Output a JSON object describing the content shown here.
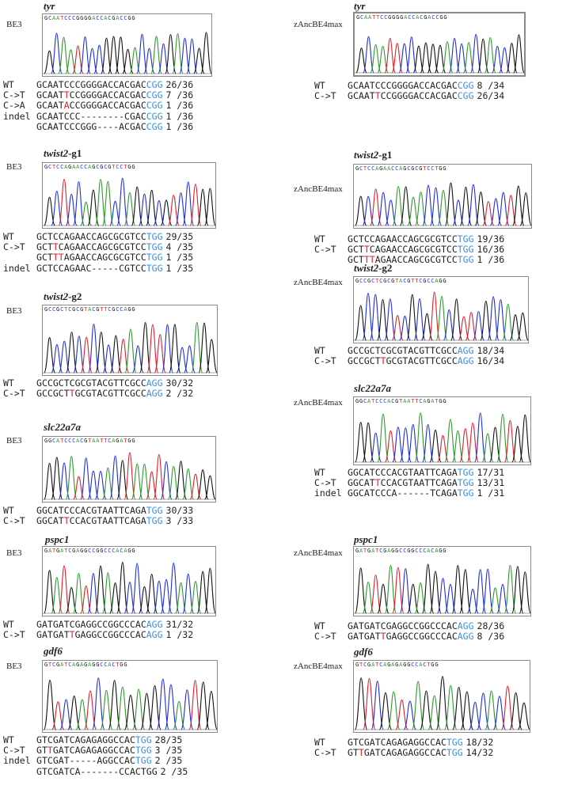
{
  "colors": {
    "A": "#2d9a2d",
    "C": "#1f2fd9",
    "G": "#111111",
    "T": "#e0202a",
    "pam": "#3c8fe0",
    "edit": "#e0202a"
  },
  "panels": [
    {
      "gene": "tyr",
      "suffix": "",
      "tool": "BE3",
      "trace": "GCAATCCCGGGGACCACGACCGG",
      "rows": [
        {
          "label": "WT",
          "seq": "GCAATCCCGGGGACCACGAC",
          "pam": "CGG",
          "count": "26/36"
        },
        {
          "label": "C->T",
          "seq": "GCAATTCCGGGGACCACGAC",
          "pam": "CGG",
          "count": "7 /36",
          "edit": [
            5
          ]
        },
        {
          "label": "C->A",
          "seq": "GCAATACCGGGGACCACGAC",
          "pam": "CGG",
          "count": "1 /36",
          "edit": [
            5
          ]
        },
        {
          "label": "indel",
          "seq": "GCAATCCC--------CGAC",
          "pam": "CGG",
          "count": "1 /36"
        },
        {
          "label": "",
          "seq": "GCAATCCCGGG----ACGAC",
          "pam": "CGG",
          "count": "1 /36"
        }
      ]
    },
    {
      "gene": "tyr",
      "suffix": "",
      "tool": "zAncBE4max",
      "trace": "GCAATTCCGGGGACCACGACCGG",
      "rows": [
        {
          "label": "WT",
          "seq": "GCAATCCCGGGGACCACGAC",
          "pam": "CGG",
          "count": "8 /34"
        },
        {
          "label": "C->T",
          "seq": "GCAATTCCGGGGACCACGAC",
          "pam": "CGG",
          "count": "26/34",
          "edit": [
            5
          ]
        }
      ]
    },
    {
      "gene": "twist2",
      "suffix": "-g1",
      "tool": "BE3",
      "trace": "GCTCCAGAACCAGCGCGTCCTGG",
      "rows": [
        {
          "label": "WT",
          "seq": "GCTCCAGAACCAGCGCGTCC",
          "pam": "TGG",
          "count": "29/35"
        },
        {
          "label": "C->T",
          "seq": "GCTTCAGAACCAGCGCGTCC",
          "pam": "TGG",
          "count": "4 /35",
          "edit": [
            3
          ]
        },
        {
          "label": "",
          "seq": "GCTTTAGAACCAGCGCGTCC",
          "pam": "TGG",
          "count": "1 /35",
          "edit": [
            3,
            4
          ]
        },
        {
          "label": "indel",
          "seq": "GCTCCAGAAC-----CGTCC",
          "pam": "TGG",
          "count": "1 /35"
        }
      ]
    },
    {
      "gene": "twist2",
      "suffix": "-g1",
      "tool": "zAncBE4max",
      "trace": "GCTCCAGAACCAGCGCGTCCTGG",
      "rows": [
        {
          "label": "WT",
          "seq": "GCTCCAGAACCAGCGCGTCC",
          "pam": "TGG",
          "count": "19/36"
        },
        {
          "label": "C->T",
          "seq": "GCTTCAGAACCAGCGCGTCC",
          "pam": "TGG",
          "count": "16/36",
          "edit": [
            3
          ]
        },
        {
          "label": "",
          "seq": "GCTTTAGAACCAGCGCGTCC",
          "pam": "TGG",
          "count": "1 /36",
          "edit": [
            3,
            4
          ]
        }
      ]
    },
    {
      "gene": "twist2",
      "suffix": "-g2",
      "tool": "BE3",
      "trace": "GCCGCTCGCGTACGTTCGCCAGG",
      "rows": [
        {
          "label": "WT",
          "seq": "GCCGCTCGCGTACGTTCGCC",
          "pam": "AGG",
          "count": "30/32"
        },
        {
          "label": "C->T",
          "seq": "GCCGCTTGCGTACGTTCGCC",
          "pam": "AGG",
          "count": "2 /32",
          "edit": [
            6
          ]
        }
      ]
    },
    {
      "gene": "twist2",
      "suffix": "-g2",
      "tool": "zAncBE4max",
      "trace": "GCCGCTCGCGTACGTTCGCCAGG",
      "rows": [
        {
          "label": "WT",
          "seq": "GCCGCTCGCGTACGTTCGCC",
          "pam": "AGG",
          "count": "18/34"
        },
        {
          "label": "C->T",
          "seq": "GCCGCTTGCGTACGTTCGCC",
          "pam": "AGG",
          "count": "16/34",
          "edit": [
            6
          ]
        }
      ]
    },
    {
      "gene": "slc22a7a",
      "suffix": "",
      "tool": "BE3",
      "trace": "GGCATCCCACGTAATTCAGATGG",
      "rows": [
        {
          "label": "WT",
          "seq": "GGCATCCCACGTAATTCAGA",
          "pam": "TGG",
          "count": "30/33"
        },
        {
          "label": "C->T",
          "seq": "GGCATTCCACGTAATTCAGA",
          "pam": "TGG",
          "count": "3 /33",
          "edit": [
            5
          ]
        }
      ]
    },
    {
      "gene": "slc22a7a",
      "suffix": "",
      "tool": "zAncBE4max",
      "trace": "GGCATCCCACGTAATTCAGATGG",
      "rows": [
        {
          "label": "WT",
          "seq": "GGCATCCCACGTAATTCAGA",
          "pam": "TGG",
          "count": "17/31"
        },
        {
          "label": "C->T",
          "seq": "GGCATTCCACGTAATTCAGA",
          "pam": "TGG",
          "count": "13/31",
          "edit": [
            5
          ]
        },
        {
          "label": "indel",
          "seq": "GGCATCCCA------TCAGA",
          "pam": "TGG",
          "count": "1 /31"
        }
      ]
    },
    {
      "gene": "pspc1",
      "suffix": "",
      "tool": "BE3",
      "trace": "GATGATCGAGGCCGGCCCACAGG",
      "rows": [
        {
          "label": "WT",
          "seq": "GATGATCGAGGCCGGCCCAC",
          "pam": "AGG",
          "count": "31/32"
        },
        {
          "label": "C->T",
          "seq": "GATGATTGAGGCCGGCCCAC",
          "pam": "AGG",
          "count": "1 /32",
          "edit": [
            6
          ]
        }
      ]
    },
    {
      "gene": "pspc1",
      "suffix": "",
      "tool": "zAncBE4max",
      "trace": "GATGATCGAGGCCGGCCCACAGG",
      "rows": [
        {
          "label": "WT",
          "seq": "GATGATCGAGGCCGGCCCAC",
          "pam": "AGG",
          "count": "28/36"
        },
        {
          "label": "C->T",
          "seq": "GATGATTGAGGCCGGCCCAC",
          "pam": "AGG",
          "count": "8 /36",
          "edit": [
            6
          ]
        }
      ]
    },
    {
      "gene": "gdf6",
      "suffix": "",
      "tool": "BE3",
      "trace": "GTCGATCAGAGAGGCCACTGG",
      "rows": [
        {
          "label": "WT",
          "seq": "GTCGATCAGAGAGGCCAC",
          "pam": "TGG",
          "count": "28/35"
        },
        {
          "label": "C->T",
          "seq": "GTTGATCAGAGAGGCCAC",
          "pam": "TGG",
          "count": "3 /35",
          "edit": [
            2
          ]
        },
        {
          "label": "indel",
          "seq": "GTCGAT-----AGGCCAC",
          "pam": "TGG",
          "count": "2 /35"
        },
        {
          "label": "",
          "seq": "GTCGATCA-------CCACTGG",
          "pam": "",
          "count": "2 /35"
        }
      ]
    },
    {
      "gene": "gdf6",
      "suffix": "",
      "tool": "zAncBE4max",
      "trace": "GTCGATCAGAGAGGCCACTGG",
      "rows": [
        {
          "label": "WT",
          "seq": "GTCGATCAGAGAGGCCAC",
          "pam": "TGG",
          "count": "18/32"
        },
        {
          "label": "C->T",
          "seq": "GTTGATCAGAGAGGCCAC",
          "pam": "TGG",
          "count": "14/32",
          "edit": [
            2
          ]
        }
      ]
    }
  ]
}
